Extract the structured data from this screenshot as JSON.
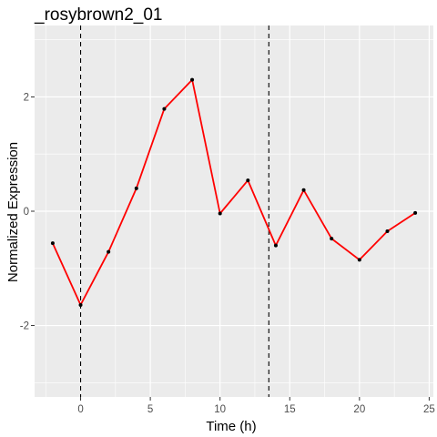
{
  "chart_data": {
    "type": "line",
    "title": "_rosybrown2_01",
    "xlabel": "Time (h)",
    "ylabel": "Normalized Expression",
    "xlim": [
      -3.3,
      25.3
    ],
    "ylim": [
      -3.25,
      3.25
    ],
    "x_ticks": [
      0,
      5,
      10,
      15,
      20,
      25
    ],
    "y_ticks": [
      -2,
      0,
      2
    ],
    "x_tick_labels": [
      "0",
      "5",
      "10",
      "15",
      "20",
      "25"
    ],
    "y_tick_labels": [
      "-2",
      "0",
      "2"
    ],
    "grid": true,
    "panel_background": "#ebebeb",
    "grid_color": "#ffffff",
    "line_color": "#ff0000",
    "point_color": "#000000",
    "vlines": [
      0,
      13.5
    ],
    "vline_style": "dashed",
    "series": [
      {
        "x": [
          -2,
          0,
          2,
          4,
          6,
          8,
          10,
          12,
          14,
          16,
          18,
          20,
          22,
          24
        ],
        "values": [
          -0.56,
          -1.64,
          -0.71,
          0.4,
          1.79,
          2.3,
          -0.04,
          0.54,
          -0.6,
          0.37,
          -0.48,
          -0.85,
          -0.35,
          -0.03
        ]
      }
    ]
  }
}
